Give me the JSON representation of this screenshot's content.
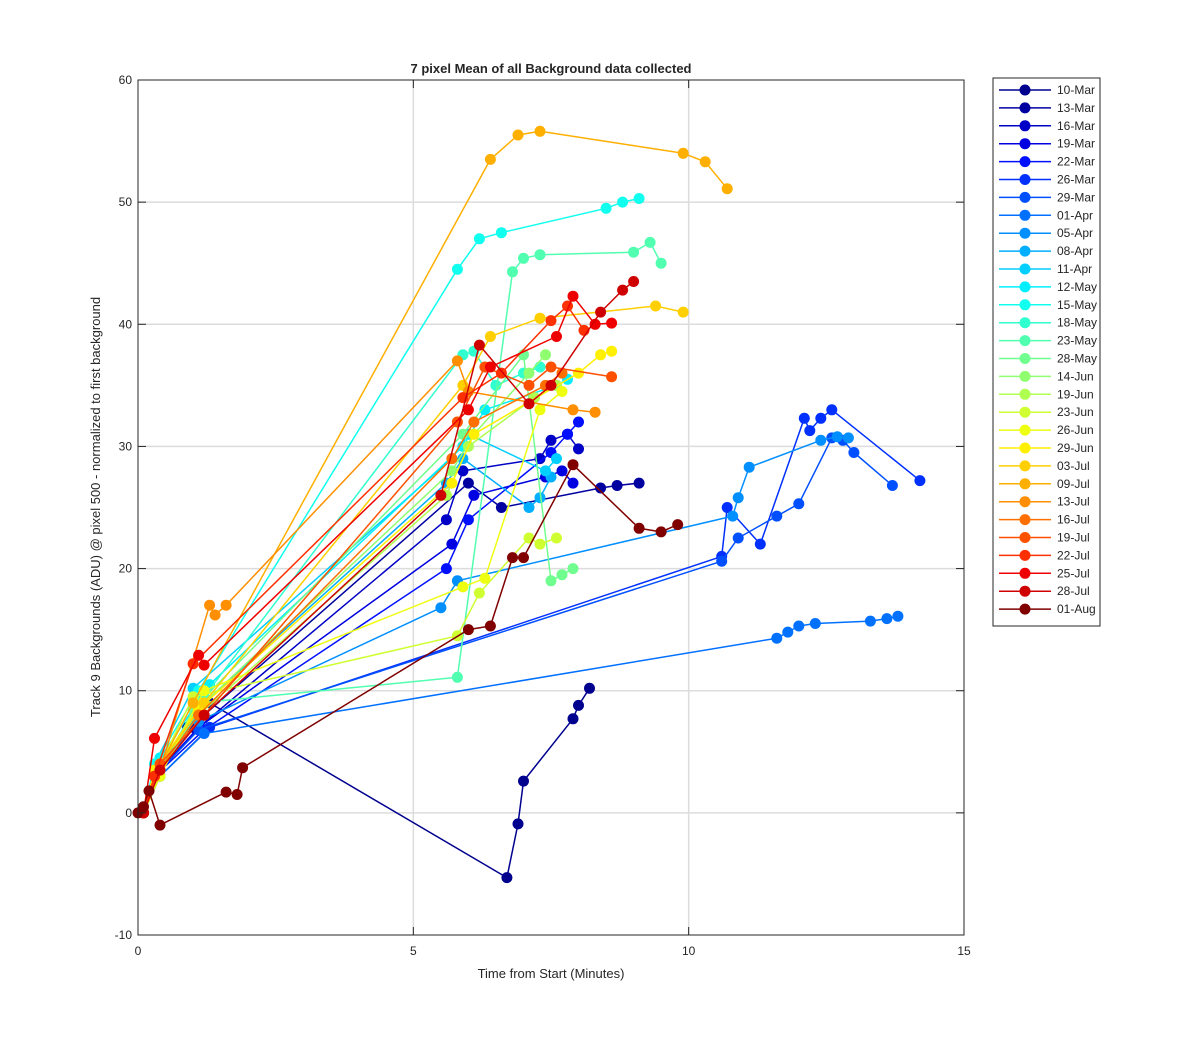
{
  "chart_data": {
    "type": "line",
    "title": "7 pixel Mean of all Background data collected",
    "xlabel": "Time from Start (Minutes)",
    "ylabel": "Track 9 Backgrounds (ADU) @ pixel 500 - normalized to first background",
    "xlim": [
      0,
      15
    ],
    "ylim": [
      -10,
      60
    ],
    "xticks": [
      0,
      5,
      10,
      15
    ],
    "yticks": [
      -10,
      0,
      10,
      20,
      30,
      40,
      50,
      60
    ],
    "grid": true,
    "legend_position": "outside-top-right",
    "series": [
      {
        "name": "10-Mar",
        "color": "#00008f",
        "x": [
          0.1,
          0.4,
          0.9,
          1.3,
          6.7,
          6.9,
          7.0,
          7.9,
          8.0,
          8.2
        ],
        "y": [
          0.0,
          4.0,
          7.0,
          9.0,
          -5.3,
          -0.9,
          2.6,
          7.7,
          8.8,
          10.2
        ]
      },
      {
        "name": "13-Mar",
        "color": "#0000a0",
        "x": [
          0.1,
          0.3,
          1.0,
          1.2,
          6.0,
          6.6,
          8.4,
          8.7,
          9.1
        ],
        "y": [
          0.0,
          3.0,
          7.0,
          8.0,
          27.0,
          25.0,
          26.6,
          26.8,
          27.0
        ]
      },
      {
        "name": "16-Mar",
        "color": "#0000c6",
        "x": [
          0.1,
          0.4,
          1.1,
          5.6,
          5.9,
          7.3,
          7.5,
          7.8,
          8.0
        ],
        "y": [
          0.0,
          3.5,
          7.0,
          24.0,
          28.0,
          29.0,
          30.5,
          31.0,
          29.8
        ]
      },
      {
        "name": "19-Mar",
        "color": "#0000e0",
        "x": [
          0.1,
          0.3,
          1.1,
          5.7,
          6.1,
          7.4,
          7.7,
          7.9
        ],
        "y": [
          0.0,
          3.0,
          7.0,
          22.0,
          26.0,
          27.5,
          28.0,
          27.0
        ]
      },
      {
        "name": "22-Mar",
        "color": "#0010ff",
        "x": [
          0.1,
          0.3,
          1.2,
          5.6,
          6.0,
          7.5,
          7.8,
          8.0
        ],
        "y": [
          0.0,
          3.0,
          6.8,
          20.0,
          24.0,
          29.5,
          31.0,
          32.0
        ]
      },
      {
        "name": "26-Mar",
        "color": "#0030ff",
        "x": [
          0.1,
          0.4,
          1.3,
          10.6,
          10.7,
          11.3,
          12.1,
          12.2,
          12.4,
          12.6,
          14.2
        ],
        "y": [
          0.0,
          3.0,
          7.0,
          21.0,
          25.0,
          22.0,
          32.3,
          31.3,
          32.3,
          33.0,
          27.2
        ]
      },
      {
        "name": "29-Mar",
        "color": "#0050ff",
        "x": [
          0.1,
          0.3,
          1.1,
          10.6,
          10.9,
          11.6,
          12.0,
          12.6,
          12.8,
          13.0,
          13.7
        ],
        "y": [
          0.0,
          3.0,
          6.8,
          20.6,
          22.5,
          24.3,
          25.3,
          30.7,
          30.5,
          29.5,
          26.8
        ]
      },
      {
        "name": "01-Apr",
        "color": "#0070ff",
        "x": [
          0.1,
          0.4,
          1.2,
          11.6,
          11.8,
          12.0,
          12.3,
          13.3,
          13.6,
          13.8
        ],
        "y": [
          0.0,
          3.0,
          6.5,
          14.3,
          14.8,
          15.3,
          15.5,
          15.7,
          15.9,
          16.1
        ]
      },
      {
        "name": "05-Apr",
        "color": "#008fff",
        "x": [
          0.1,
          0.3,
          1.1,
          5.5,
          5.8,
          10.8,
          10.9,
          11.1,
          12.4,
          12.7,
          12.9
        ],
        "y": [
          0.0,
          3.0,
          7.5,
          16.8,
          19.0,
          24.3,
          25.8,
          28.3,
          30.5,
          30.8,
          30.7
        ]
      },
      {
        "name": "08-Apr",
        "color": "#00afff",
        "x": [
          0.1,
          0.4,
          1.2,
          5.6,
          5.9,
          7.1,
          7.3,
          7.5
        ],
        "y": [
          0.0,
          3.5,
          9.0,
          27.0,
          29.0,
          25.0,
          25.8,
          27.5
        ]
      },
      {
        "name": "11-Apr",
        "color": "#00cfff",
        "x": [
          0.1,
          0.3,
          1.0,
          5.7,
          6.0,
          7.4,
          7.6
        ],
        "y": [
          0.0,
          4.0,
          10.2,
          29.0,
          31.0,
          28.0,
          29.0
        ]
      },
      {
        "name": "12-May",
        "color": "#00efff",
        "x": [
          0.1,
          0.4,
          1.3,
          5.9,
          6.3,
          7.6,
          7.8
        ],
        "y": [
          0.0,
          4.5,
          10.5,
          30.0,
          33.0,
          35.0,
          35.5
        ]
      },
      {
        "name": "15-May",
        "color": "#10ffef",
        "x": [
          0.1,
          0.3,
          1.1,
          5.8,
          6.2,
          6.6,
          8.5,
          8.8,
          9.1
        ],
        "y": [
          0.0,
          4.0,
          10.0,
          44.5,
          47.0,
          47.5,
          49.5,
          50.0,
          50.3
        ]
      },
      {
        "name": "18-May",
        "color": "#30ffcf",
        "x": [
          0.1,
          0.4,
          1.2,
          5.9,
          6.1,
          6.5,
          7.0,
          7.3
        ],
        "y": [
          0.0,
          3.5,
          9.5,
          37.5,
          37.8,
          35.0,
          36.0,
          36.5
        ]
      },
      {
        "name": "23-May",
        "color": "#50ffaf",
        "x": [
          0.1,
          0.3,
          1.1,
          5.8,
          6.8,
          7.0,
          7.3,
          9.0,
          9.3,
          9.5
        ],
        "y": [
          0.0,
          3.0,
          9.0,
          11.1,
          44.3,
          45.4,
          45.7,
          45.9,
          46.7,
          45.0
        ]
      },
      {
        "name": "28-May",
        "color": "#70ff8f",
        "x": [
          0.1,
          0.4,
          1.0,
          5.9,
          7.0,
          7.5,
          7.7,
          7.9
        ],
        "y": [
          0.0,
          3.0,
          8.5,
          31.0,
          37.5,
          19.0,
          19.5,
          20.0
        ]
      },
      {
        "name": "14-Jun",
        "color": "#8fff70",
        "x": [
          0.1,
          0.3,
          1.2,
          5.7,
          6.1,
          7.1,
          7.4
        ],
        "y": [
          0.0,
          3.0,
          9.0,
          28.0,
          31.0,
          36.0,
          37.5
        ]
      },
      {
        "name": "19-Jun",
        "color": "#afff50",
        "x": [
          0.1,
          0.4,
          1.1,
          5.6,
          6.0,
          7.2,
          7.6
        ],
        "y": [
          0.0,
          3.5,
          8.0,
          26.0,
          30.0,
          34.0,
          35.0
        ]
      },
      {
        "name": "23-Jun",
        "color": "#cfff30",
        "x": [
          0.1,
          0.3,
          1.0,
          5.8,
          6.2,
          7.1,
          7.3,
          7.6
        ],
        "y": [
          0.0,
          3.0,
          9.5,
          14.5,
          18.0,
          22.5,
          22.0,
          22.5
        ]
      },
      {
        "name": "26-Jun",
        "color": "#efff10",
        "x": [
          0.1,
          0.4,
          1.2,
          5.9,
          6.3,
          7.3,
          7.7
        ],
        "y": [
          0.0,
          3.0,
          10.0,
          18.5,
          19.2,
          33.0,
          34.5
        ]
      },
      {
        "name": "29-Jun",
        "color": "#ffef00",
        "x": [
          0.1,
          0.3,
          1.1,
          5.7,
          6.1,
          8.0,
          8.4,
          8.6
        ],
        "y": [
          0.0,
          3.5,
          8.5,
          27.0,
          31.0,
          36.0,
          37.5,
          37.8
        ]
      },
      {
        "name": "03-Jul",
        "color": "#ffcf00",
        "x": [
          0.1,
          0.4,
          1.2,
          5.9,
          6.4,
          7.3,
          9.4,
          9.9
        ],
        "y": [
          0.0,
          4.0,
          9.0,
          35.0,
          39.0,
          40.5,
          41.5,
          41.0
        ]
      },
      {
        "name": "09-Jul",
        "color": "#ffaf00",
        "x": [
          0.1,
          0.3,
          1.0,
          6.4,
          6.9,
          7.3,
          9.9,
          10.3,
          10.7
        ],
        "y": [
          0.0,
          3.0,
          9.0,
          53.5,
          55.5,
          55.8,
          54.0,
          53.3,
          51.1
        ]
      },
      {
        "name": "13-Jul",
        "color": "#ff8f00",
        "x": [
          0.1,
          0.4,
          1.3,
          1.4,
          1.6,
          5.8,
          6.0,
          7.9,
          8.3
        ],
        "y": [
          0.0,
          3.5,
          17.0,
          16.2,
          17.0,
          37.0,
          34.5,
          33.0,
          32.8
        ]
      },
      {
        "name": "16-Jul",
        "color": "#ff7000",
        "x": [
          0.1,
          0.3,
          1.1,
          5.7,
          6.1,
          7.4,
          7.7
        ],
        "y": [
          0.0,
          3.0,
          8.0,
          29.0,
          32.0,
          35.0,
          36.0
        ]
      },
      {
        "name": "19-Jul",
        "color": "#ff5000",
        "x": [
          0.1,
          0.4,
          1.2,
          5.8,
          6.3,
          7.1,
          7.5,
          8.6
        ],
        "y": [
          0.0,
          4.0,
          8.0,
          32.0,
          36.5,
          35.0,
          36.5,
          35.7
        ]
      },
      {
        "name": "22-Jul",
        "color": "#ff3000",
        "x": [
          0.1,
          0.3,
          1.0,
          5.9,
          6.6,
          7.5,
          7.8,
          8.1
        ],
        "y": [
          0.0,
          3.0,
          12.2,
          34.0,
          36.0,
          40.3,
          41.5,
          39.5
        ]
      },
      {
        "name": "25-Jul",
        "color": "#ef0000",
        "x": [
          0.1,
          0.3,
          1.1,
          1.2,
          6.0,
          6.4,
          7.6,
          7.9,
          8.3,
          8.6
        ],
        "y": [
          0.0,
          6.1,
          12.9,
          12.1,
          33.0,
          36.5,
          39.0,
          42.3,
          40.0,
          40.1
        ]
      },
      {
        "name": "28-Jul",
        "color": "#cf0000",
        "x": [
          0.1,
          0.4,
          1.2,
          5.5,
          6.2,
          7.1,
          7.5,
          8.4,
          8.8,
          9.0
        ],
        "y": [
          0.0,
          3.5,
          8.0,
          26.0,
          38.3,
          33.5,
          35.0,
          41.0,
          42.8,
          43.5
        ]
      },
      {
        "name": "01-Aug",
        "color": "#800000",
        "x": [
          0.0,
          0.1,
          0.2,
          0.4,
          1.6,
          1.8,
          1.9,
          6.0,
          6.4,
          6.8,
          7.0,
          7.9,
          9.1,
          9.5,
          9.8
        ],
        "y": [
          0.0,
          0.5,
          1.8,
          -1.0,
          1.7,
          1.5,
          3.7,
          15.0,
          15.3,
          20.9,
          20.9,
          28.5,
          23.3,
          23.0,
          23.6
        ]
      }
    ]
  }
}
